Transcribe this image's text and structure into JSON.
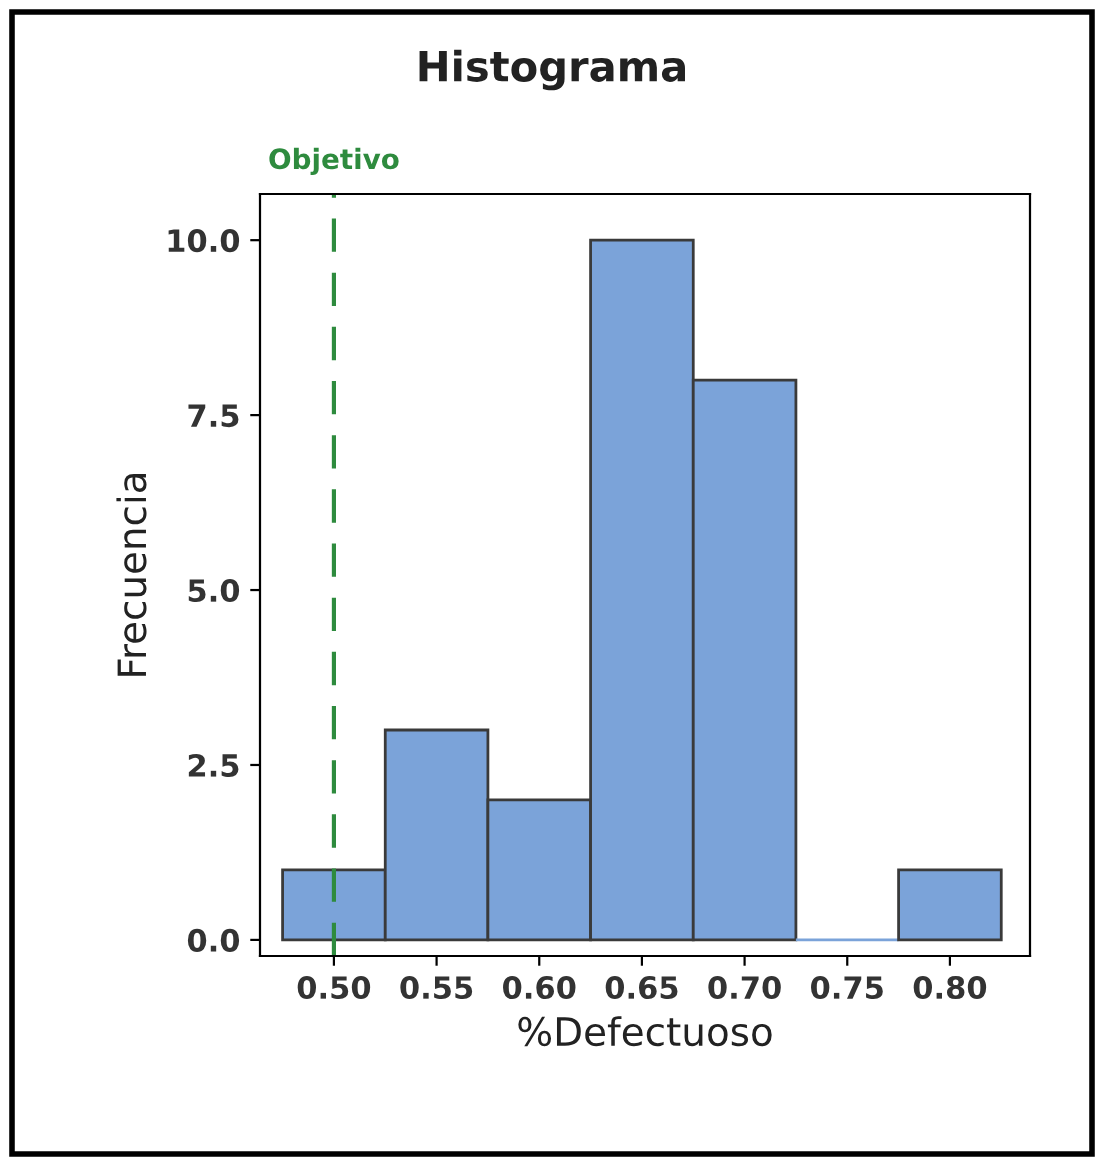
{
  "chart_data": {
    "type": "histogram",
    "title": "Histograma",
    "xlabel": "%Defectuoso",
    "ylabel": "Frecuencia",
    "bins": [
      0.475,
      0.525,
      0.575,
      0.625,
      0.675,
      0.725,
      0.775,
      0.825
    ],
    "values": [
      1,
      3,
      2,
      10,
      8,
      0,
      1
    ],
    "color": "#7ba3d9",
    "xlim": [
      0.464,
      0.839
    ],
    "xticks": [
      {
        "value": 0.5,
        "label": "0.50"
      },
      {
        "value": 0.55,
        "label": "0.55"
      },
      {
        "value": 0.6,
        "label": "0.60"
      },
      {
        "value": 0.65,
        "label": "0.65"
      },
      {
        "value": 0.7,
        "label": "0.70"
      },
      {
        "value": 0.75,
        "label": "0.75"
      },
      {
        "value": 0.8,
        "label": "0.80"
      }
    ],
    "ylim": [
      -0.23,
      10.66
    ],
    "yticks": [
      {
        "value": 0,
        "label": "0.0"
      },
      {
        "value": 2.5,
        "label": "2.5"
      },
      {
        "value": 5,
        "label": "5.0"
      },
      {
        "value": 7.5,
        "label": "7.5"
      },
      {
        "value": 10,
        "label": "10.0"
      }
    ],
    "ref_lines": [
      {
        "axis": "x",
        "value": 0.5,
        "label": "Objetivo",
        "color": "#2e8b3e",
        "line_style": "dashed"
      }
    ],
    "grid": false,
    "legend": false
  }
}
